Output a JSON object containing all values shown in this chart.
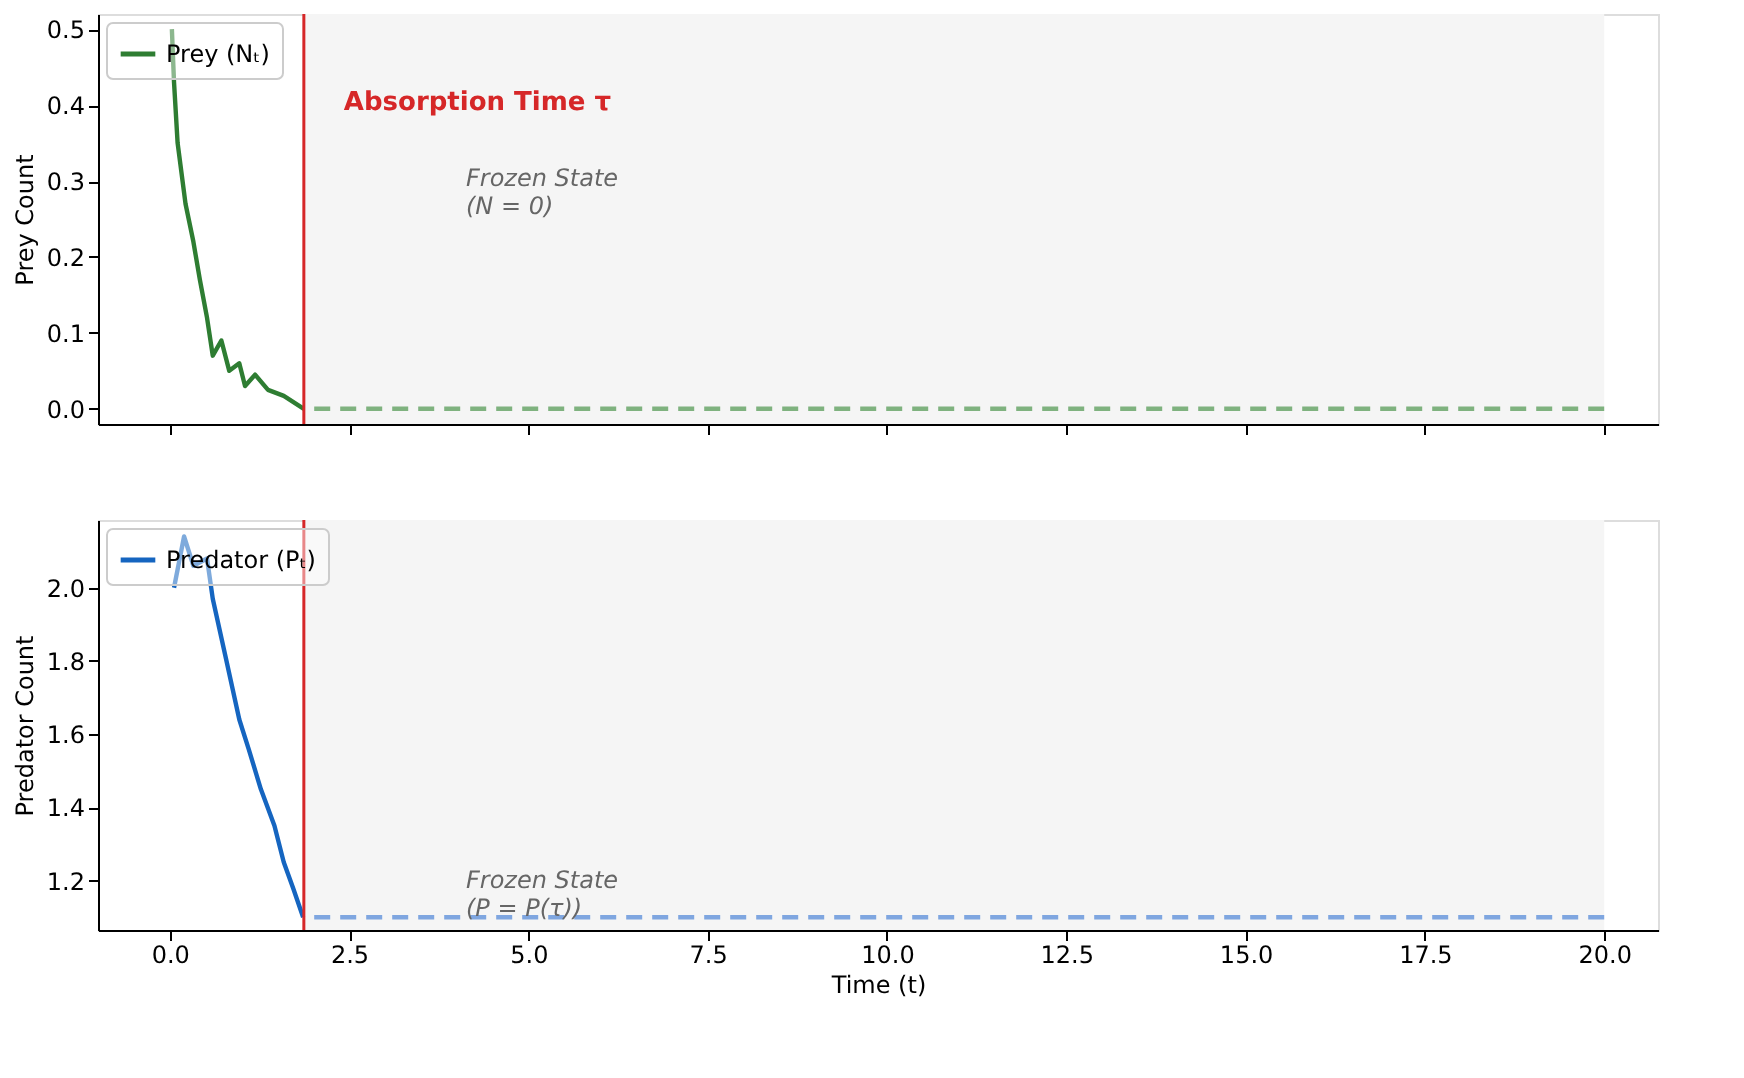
{
  "chart_data": [
    {
      "type": "line",
      "ylabel": "Prey Count",
      "legend": "top left",
      "tick_labels": "y",
      "marker": "none",
      "grid": false,
      "xlim": [
        -1.0,
        20.75
      ],
      "ylim": [
        -0.02,
        0.52
      ],
      "xticks": [
        0,
        2.5,
        5,
        7.5,
        10,
        12.5,
        15,
        17.5,
        20
      ],
      "yticks": [
        {
          "value": 0,
          "label": "0.0"
        },
        {
          "value": 0.1,
          "label": "0.1"
        },
        {
          "value": 0.2,
          "label": "0.2"
        },
        {
          "value": 0.3,
          "label": "0.3"
        },
        {
          "value": 0.4,
          "label": "0.4"
        },
        {
          "value": 0.5,
          "label": "0.5"
        }
      ],
      "series": [
        {
          "name": "Prey (Nₜ)",
          "color": "#2e7d32",
          "line_style": "solid",
          "x": [
            0.03,
            0.06,
            0.11,
            0.22,
            0.33,
            0.42,
            0.52,
            0.6,
            0.72,
            0.83,
            0.97,
            1.05,
            1.19,
            1.37,
            1.59,
            1.87
          ],
          "values": [
            0.5,
            0.43,
            0.35,
            0.27,
            0.22,
            0.17,
            0.12,
            0.07,
            0.09,
            0.05,
            0.06,
            0.03,
            0.045,
            0.025,
            0.017,
            0.0
          ]
        },
        {
          "color": "#7fb27f",
          "line_style": "dashed",
          "x": [
            1.87,
            20
          ],
          "values": [
            0.0,
            0.0
          ]
        }
      ],
      "bands": [
        {
          "axis": "x",
          "from": 1.87,
          "to": 20,
          "color": "#f5f5f5"
        }
      ],
      "ref_lines": [
        {
          "axis": "x",
          "value": 1.87,
          "label": "Absorption Time τ",
          "color": "#d62728"
        }
      ],
      "annotations": [
        "Frozen State\n(N = 0)"
      ]
    },
    {
      "type": "line",
      "xlabel": "Time (t)",
      "ylabel": "Predator Count",
      "legend": "top left",
      "marker": "none",
      "grid": false,
      "xlim": [
        -1.0,
        20.75
      ],
      "ylim": [
        1.065,
        2.185
      ],
      "xticks": [
        {
          "value": 0,
          "label": "0.0"
        },
        {
          "value": 2.5,
          "label": "2.5"
        },
        {
          "value": 5,
          "label": "5.0"
        },
        {
          "value": 7.5,
          "label": "7.5"
        },
        {
          "value": 10,
          "label": "10.0"
        },
        {
          "value": 12.5,
          "label": "12.5"
        },
        {
          "value": 15,
          "label": "15.0"
        },
        {
          "value": 17.5,
          "label": "17.5"
        },
        {
          "value": 20,
          "label": "20.0"
        }
      ],
      "yticks": [
        {
          "value": 1.2,
          "label": "1.2"
        },
        {
          "value": 1.4,
          "label": "1.4"
        },
        {
          "value": 1.6,
          "label": "1.6"
        },
        {
          "value": 1.8,
          "label": "1.8"
        },
        {
          "value": 2.0,
          "label": "2.0"
        }
      ],
      "series": [
        {
          "name": "Predator (Pₜ)",
          "color": "#1565c0",
          "line_style": "solid",
          "x": [
            0.06,
            0.2,
            0.33,
            0.52,
            0.6,
            0.78,
            0.97,
            1.1,
            1.27,
            1.46,
            1.59,
            1.72,
            1.86
          ],
          "values": [
            2.0,
            2.14,
            2.06,
            2.08,
            1.97,
            1.81,
            1.64,
            1.56,
            1.45,
            1.35,
            1.25,
            1.18,
            1.1
          ]
        },
        {
          "color": "#7fa6e0",
          "line_style": "dashed",
          "x": [
            1.87,
            20
          ],
          "values": [
            1.1,
            1.1
          ]
        }
      ],
      "bands": [
        {
          "axis": "x",
          "from": 1.87,
          "to": 20,
          "color": "#f5f5f5"
        }
      ],
      "ref_lines": [
        {
          "axis": "x",
          "value": 1.87,
          "color": "#d62728"
        }
      ],
      "annotations": [
        "Frozen State\n(P = P(τ))"
      ]
    }
  ]
}
